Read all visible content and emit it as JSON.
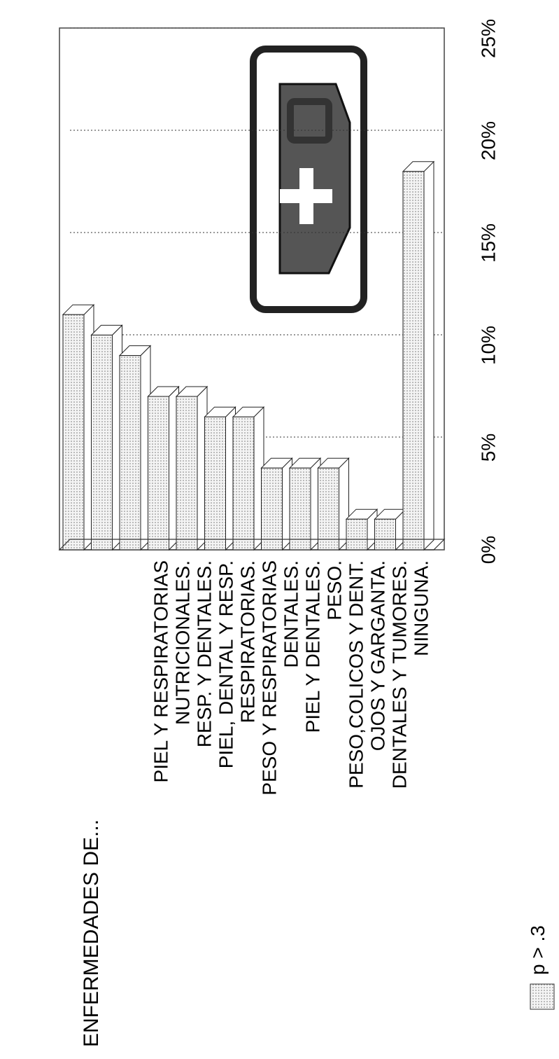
{
  "chart_data": {
    "type": "bar",
    "title": "ENFERMEDADES DE...",
    "categories": [
      "PIEL Y RESPIRATORIAS",
      "NUTRICIONALES.",
      "RESP. Y DENTALES.",
      "PIEL, DENTAL Y RESP.",
      "RESPIRATORIAS.",
      "PESO Y RESPIRATORIAS",
      "DENTALES.",
      "PIEL Y DENTALES.",
      "PESO.",
      "PESO,COLICOS Y DENT.",
      "OJOS Y GARGANTA.",
      "DENTALES Y TUMORES.",
      "NINGUNA."
    ],
    "series": [
      {
        "name": "p > .3",
        "color": "#e6e6e6",
        "values": [
          11.5,
          10.5,
          9.5,
          7.5,
          7.5,
          6.5,
          6.5,
          4,
          4,
          4,
          1.5,
          1.5,
          18.5
        ]
      }
    ],
    "xlim": [
      0,
      25
    ],
    "xticks": [
      {
        "value": 0,
        "label": "0%"
      },
      {
        "value": 5,
        "label": "5%"
      },
      {
        "value": 10,
        "label": "10%"
      },
      {
        "value": 15,
        "label": "15%"
      },
      {
        "value": 20,
        "label": "20%"
      },
      {
        "value": 25,
        "label": "25%"
      }
    ],
    "grid": true
  }
}
